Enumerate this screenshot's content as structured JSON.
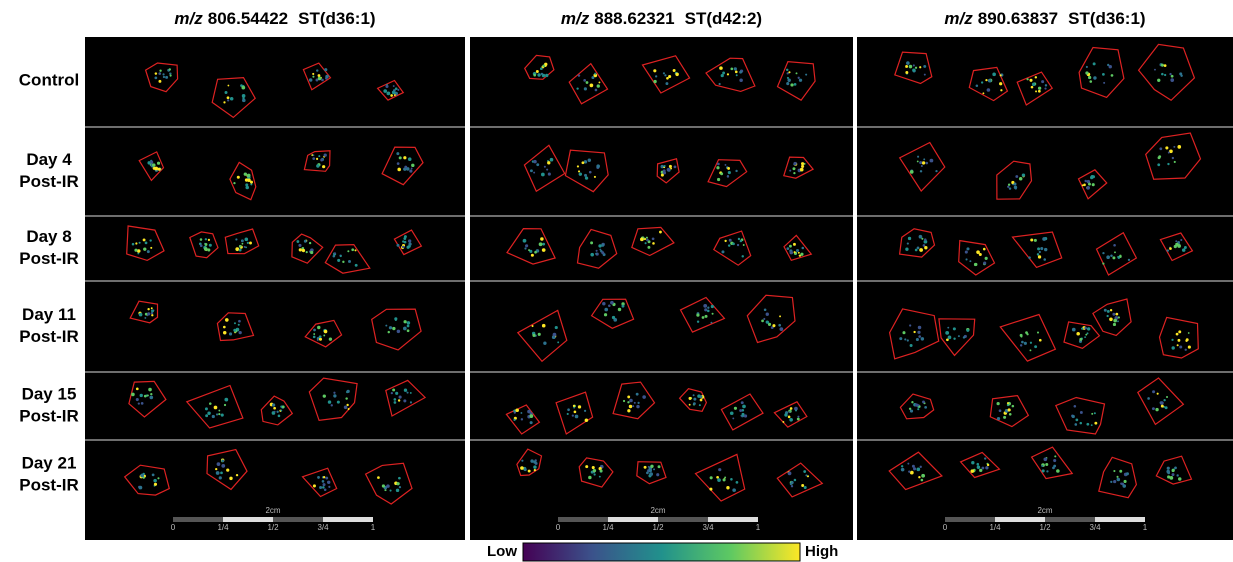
{
  "columns": [
    {
      "mz_label": "m/z",
      "mz_value": "806.54422",
      "lipid": "ST(d36:1)"
    },
    {
      "mz_label": "m/z",
      "mz_value": "888.62321",
      "lipid": "ST(d42:2)"
    },
    {
      "mz_label": "m/z",
      "mz_value": "890.63837",
      "lipid": "ST(d36:1)"
    }
  ],
  "rows": [
    {
      "label_lines": [
        "Control"
      ]
    },
    {
      "label_lines": [
        "Day 4",
        "Post-IR"
      ]
    },
    {
      "label_lines": [
        "Day 8",
        "Post-IR"
      ]
    },
    {
      "label_lines": [
        "Day 11",
        "Post-IR"
      ]
    },
    {
      "label_lines": [
        "Day 15",
        "Post-IR"
      ]
    },
    {
      "label_lines": [
        "Day 21",
        "Post-IR"
      ]
    }
  ],
  "scale_bar": {
    "length": "2cm",
    "ticks": [
      "0",
      "1/4",
      "1/2",
      "3/4",
      "1"
    ]
  },
  "colorbar": {
    "low": "Low",
    "high": "High"
  }
}
